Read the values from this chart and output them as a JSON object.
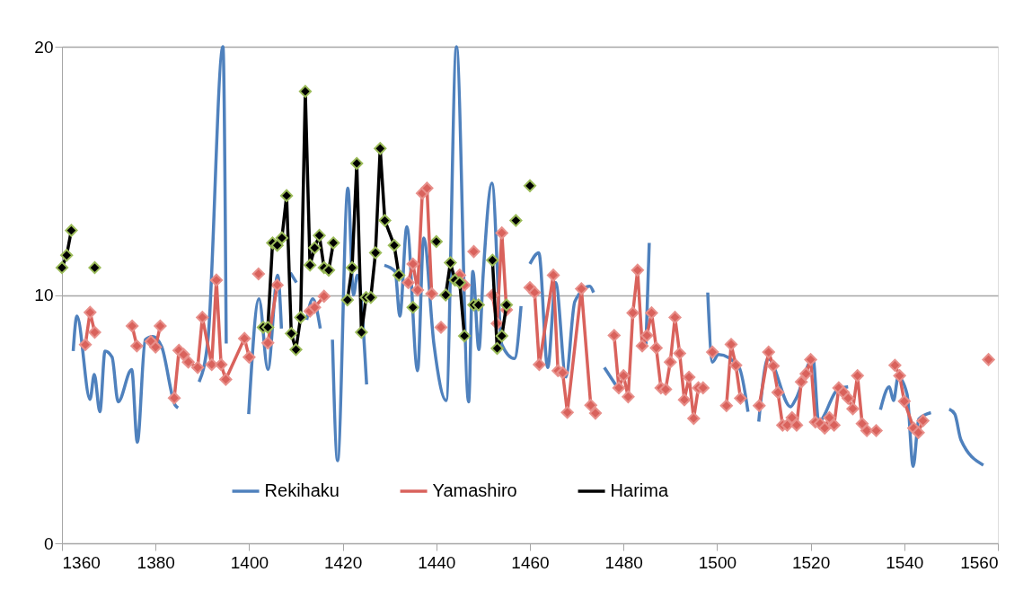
{
  "chart_data": {
    "type": "line",
    "xlim": [
      1360,
      1560
    ],
    "xticks": [
      1360,
      1380,
      1400,
      1420,
      1440,
      1460,
      1480,
      1500,
      1520,
      1540,
      1560
    ],
    "ylim": [
      0,
      20
    ],
    "yticks": [
      0,
      10,
      20
    ],
    "grid": "y",
    "legend": "bottom",
    "series": [
      {
        "name": "Rekihaku",
        "color": "#4f81bd",
        "marker": "none",
        "x": [
          1362.4,
          1363.2,
          1366.0,
          1366.9,
          1368.1,
          1369.2,
          1370.7,
          1372.0,
          1374.9,
          1376.1,
          1377.8,
          1379.4,
          1381.3,
          1384.2,
          1384.8,
          1387,
          1389.3,
          1391.2,
          1394.4,
          1395.1,
          1397,
          1399.9,
          1402.1,
          1404.0,
          1406.1,
          1406.9,
          1408,
          1408.8,
          1410.1,
          1411,
          1412.3,
          1413.6,
          1415.2,
          1416.5,
          1417.8,
          1418.9,
          1421.1,
          1422.3,
          1423.1,
          1425.1,
          1427,
          1428.9,
          1431.2,
          1432.2,
          1433.7,
          1436.0,
          1437.3,
          1439.5,
          1442.1,
          1444.3,
          1446.9,
          1447.8,
          1449.1,
          1450.0,
          1451.9,
          1454.0,
          1456.7,
          1458.1,
          1459,
          1460.0,
          1461.9,
          1463.8,
          1465.5,
          1467.7,
          1469.6,
          1472.8,
          1473.6,
          1474.5,
          1475.9,
          1478.6,
          1482,
          1484.8,
          1485.5,
          1492,
          1498.0,
          1499.0,
          1500.3,
          1504.7,
          1506.6,
          1508,
          1508.9,
          1510.9,
          1515.7,
          1516.8,
          1520.5,
          1521.7,
          1525.8,
          1528.0,
          1531,
          1534.9,
          1536.8,
          1537.7,
          1538.7,
          1540.6,
          1541.9,
          1543.1,
          1545.7,
          1548,
          1549.6,
          1550.8,
          1552.1,
          1556.9
        ],
        "values": [
          7.74,
          9.15,
          5.8,
          6.8,
          5.3,
          7.74,
          7.5,
          5.7,
          7.0,
          4.07,
          8.2,
          8.33,
          7.92,
          5.56,
          5.45,
          null,
          6.5,
          8.2,
          20,
          8.05,
          null,
          5.2,
          9.85,
          7.0,
          10.8,
          8.65,
          null,
          10.9,
          10.5,
          null,
          9.0,
          9.85,
          8.65,
          null,
          8.2,
          3.33,
          14.3,
          10.0,
          10.8,
          6.4,
          null,
          11.2,
          10.95,
          9.15,
          12.75,
          6.95,
          12.3,
          8.0,
          5.75,
          20,
          5.7,
          10.95,
          7.8,
          10.8,
          14.5,
          8.0,
          7.44,
          9.55,
          null,
          11.25,
          11.7,
          7.08,
          10.5,
          6.7,
          9.74,
          10.35,
          10.1,
          null,
          7.08,
          6.3,
          null,
          8.0,
          12.1,
          null,
          10.1,
          7.3,
          7.6,
          7.08,
          5.3,
          null,
          4.9,
          7.44,
          5.5,
          5.8,
          7.44,
          4.9,
          6.2,
          6.3,
          null,
          5.38,
          6.3,
          5.75,
          6.7,
          6.0,
          3.1,
          5.0,
          5.26,
          null,
          5.4,
          5.2,
          4.17,
          3.15
        ]
      },
      {
        "name": "Yamashiro",
        "color": "#d9625c",
        "marker": "diamond",
        "x": [
          1365,
          1366,
          1367,
          1370,
          1375,
          1376,
          1377,
          1379,
          1380,
          1381,
          1383,
          1384,
          1385,
          1386,
          1387,
          1389,
          1390,
          1392,
          1393,
          1394,
          1395,
          1399,
          1400,
          1401,
          1402,
          1403,
          1404,
          1406,
          1410,
          1413,
          1414,
          1416,
          1420,
          1434,
          1435,
          1436,
          1437,
          1438,
          1439,
          1440,
          1441,
          1442,
          1445,
          1446,
          1447,
          1448,
          1450,
          1452,
          1453,
          1454,
          1455,
          1457,
          1460,
          1461,
          1462,
          1465,
          1466,
          1467,
          1468,
          1471,
          1473,
          1474,
          1476,
          1478,
          1479,
          1480,
          1481,
          1482,
          1483,
          1484,
          1485,
          1486,
          1487,
          1488,
          1489,
          1490,
          1491,
          1492,
          1493,
          1494,
          1495,
          1496,
          1497,
          1498,
          1499,
          1500,
          1502,
          1503,
          1504,
          1505,
          1507,
          1509,
          1511,
          1512,
          1513,
          1514,
          1515,
          1516,
          1517,
          1518,
          1519,
          1520,
          1521,
          1522,
          1523,
          1524,
          1525,
          1526,
          1527,
          1528,
          1529,
          1530,
          1531,
          1532,
          1534,
          1536,
          1538,
          1539,
          1540,
          1542,
          1543,
          1544,
          1550,
          1558
        ],
        "values": [
          8.0,
          9.3,
          8.5,
          null,
          8.75,
          7.95,
          null,
          8.13,
          7.9,
          8.75,
          null,
          5.85,
          7.77,
          7.6,
          7.3,
          7.08,
          9.1,
          7.2,
          10.6,
          7.2,
          6.6,
          8.25,
          7.5,
          null,
          10.85,
          null,
          8.07,
          10.4,
          null,
          9.35,
          9.5,
          9.95,
          null,
          10.5,
          11.25,
          10.2,
          14.1,
          14.3,
          10.05,
          null,
          8.7,
          null,
          10.8,
          10.4,
          null,
          11.75,
          null,
          10.0,
          8.85,
          12.5,
          9.4,
          null,
          10.3,
          10.1,
          7.2,
          10.8,
          6.95,
          6.87,
          5.27,
          10.25,
          5.56,
          5.24,
          null,
          8.37,
          6.26,
          6.75,
          5.9,
          9.28,
          11.0,
          7.95,
          8.37,
          9.28,
          7.87,
          6.26,
          6.2,
          7.3,
          9.1,
          7.65,
          5.78,
          6.69,
          5.03,
          6.26,
          6.26,
          null,
          7.7,
          null,
          5.54,
          8.01,
          7.17,
          5.84,
          null,
          5.54,
          7.7,
          7.14,
          6.08,
          4.76,
          4.76,
          5.06,
          4.76,
          6.5,
          6.83,
          7.4,
          4.88,
          4.82,
          4.64,
          5.06,
          4.76,
          6.26,
          6.08,
          5.84,
          5.42,
          6.75,
          4.82,
          4.54,
          4.54,
          null,
          7.17,
          6.75,
          5.72,
          4.64,
          4.46,
          4.94,
          null,
          7.4
        ]
      },
      {
        "name": "Harima",
        "color": "#000000",
        "marker": "diamond",
        "x": [
          1360,
          1361,
          1362,
          1364,
          1367,
          1380,
          1403,
          1404,
          1405,
          1406,
          1407,
          1408,
          1409,
          1410,
          1411,
          1412,
          1413,
          1414,
          1415,
          1416,
          1417,
          1418,
          1419,
          1421,
          1422,
          1423,
          1424,
          1425,
          1426,
          1427,
          1428,
          1429,
          1431,
          1432,
          1433,
          1435,
          1437,
          1440,
          1441,
          1442,
          1443,
          1444,
          1445,
          1446,
          1447,
          1448,
          1449,
          1450,
          1452,
          1453,
          1454,
          1455,
          1456,
          1457,
          1458,
          1460
        ],
        "values": [
          11.1,
          11.6,
          12.6,
          null,
          11.1,
          null,
          8.7,
          8.7,
          12.1,
          12.0,
          12.3,
          14.0,
          8.45,
          7.8,
          9.1,
          18.2,
          11.2,
          11.9,
          12.4,
          11.1,
          11.0,
          12.1,
          null,
          9.8,
          11.1,
          15.3,
          8.5,
          9.9,
          9.9,
          11.7,
          15.9,
          13.0,
          12.0,
          10.8,
          null,
          9.5,
          null,
          12.15,
          null,
          10.0,
          11.3,
          10.6,
          10.5,
          8.35,
          null,
          9.6,
          9.6,
          null,
          11.4,
          7.85,
          8.35,
          9.6,
          null,
          13.0,
          null,
          14.4
        ]
      }
    ]
  }
}
